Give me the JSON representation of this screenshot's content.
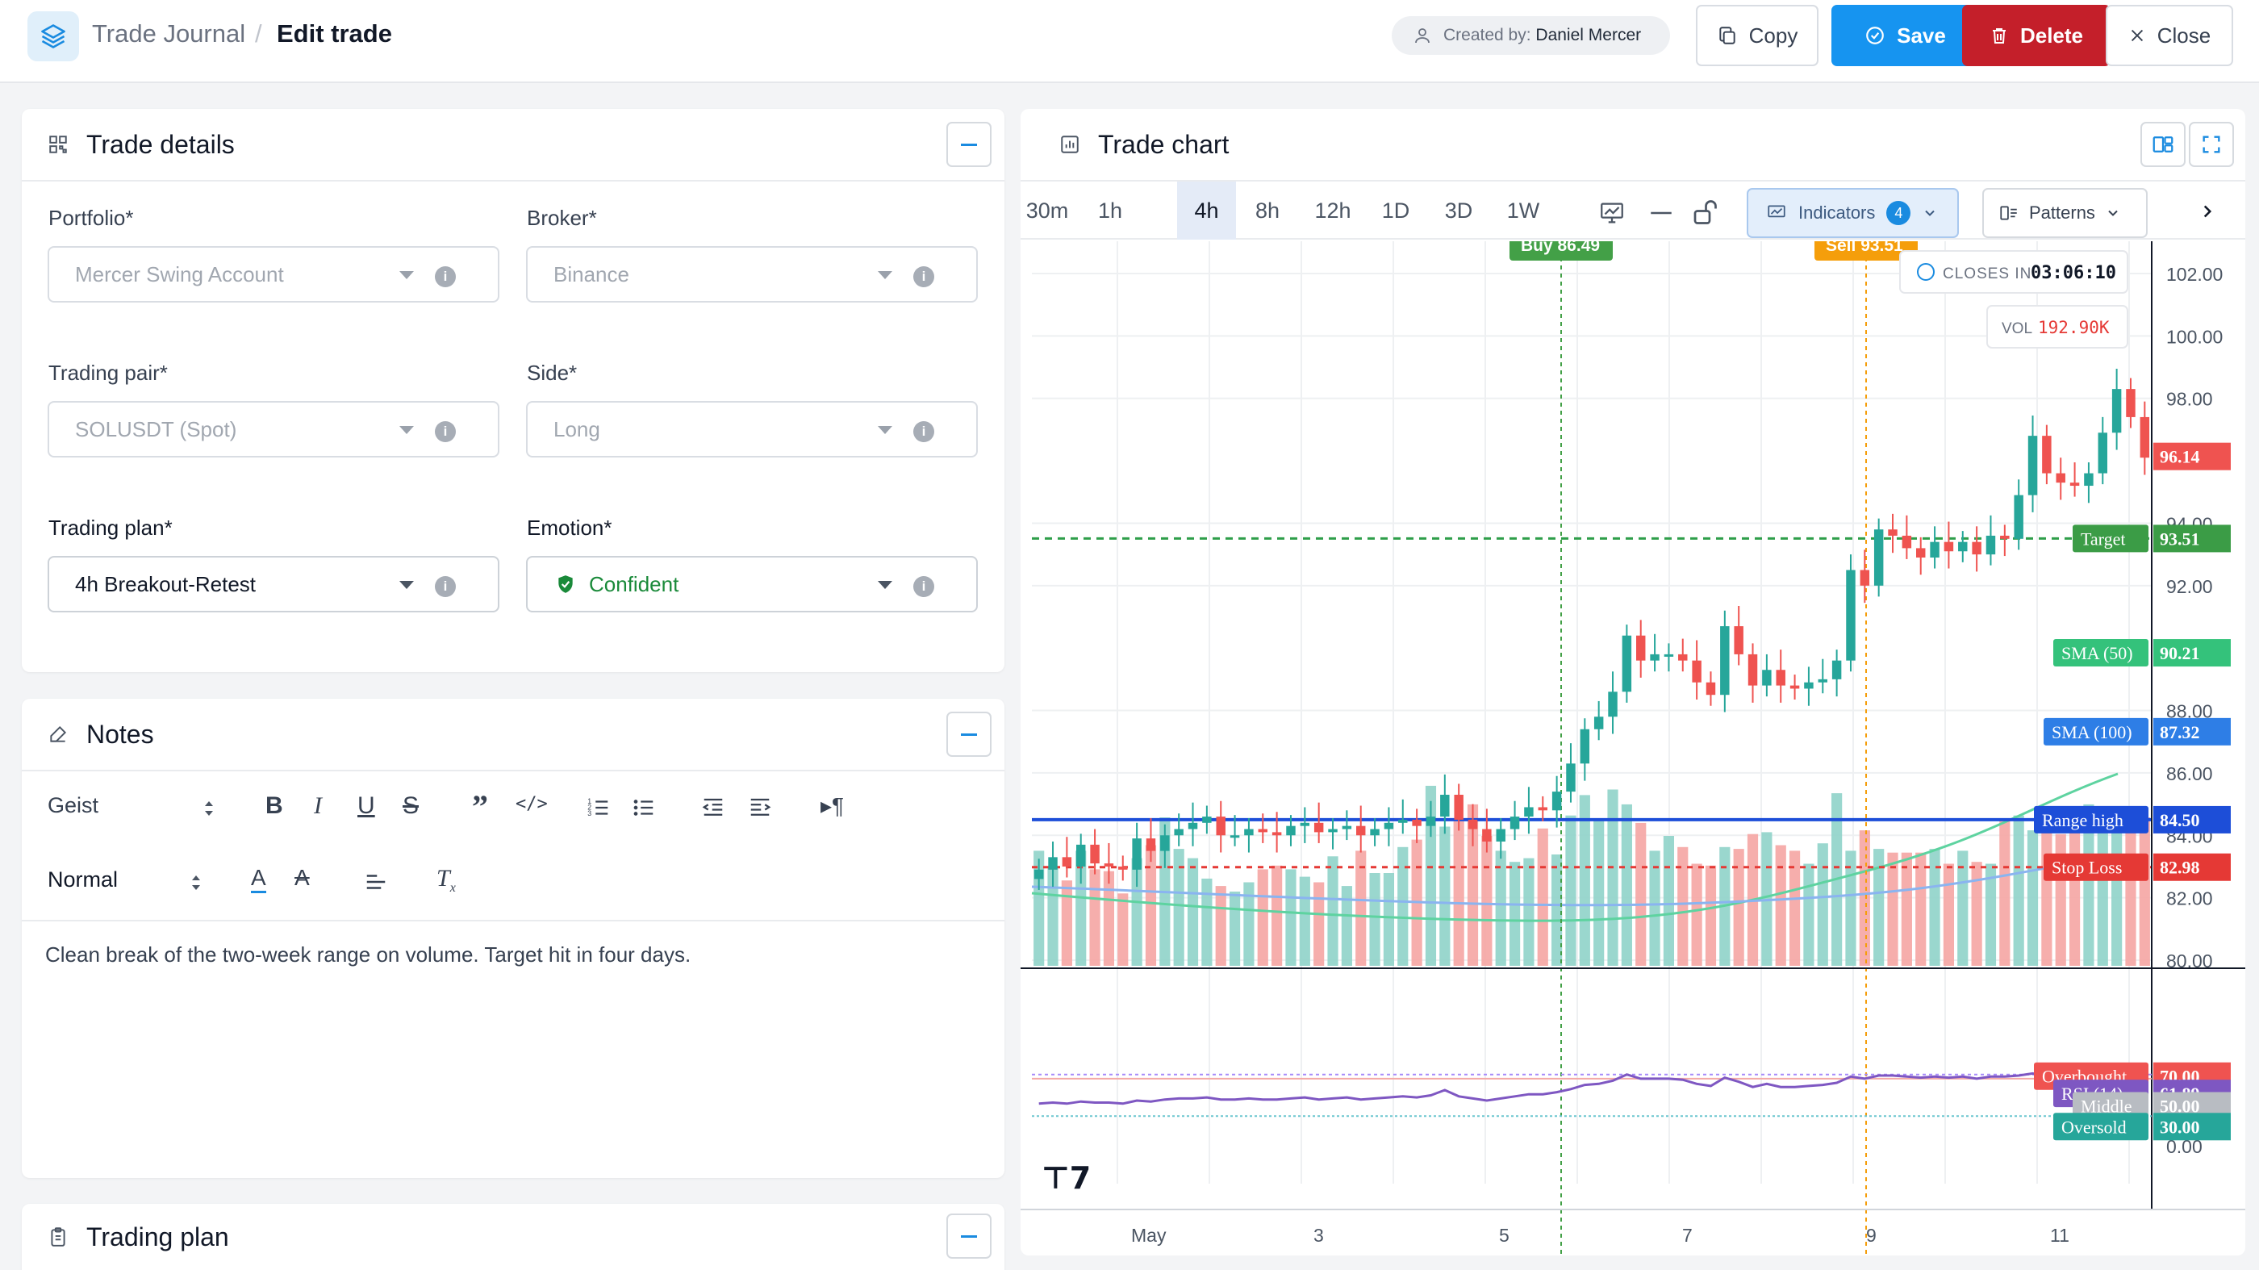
{
  "header": {
    "breadcrumb_parent": "Trade Journal",
    "breadcrumb_sep": "/",
    "breadcrumb_current": "Edit trade",
    "created_by_label": "Created by:",
    "created_by_name": "Daniel Mercer",
    "copy_label": "Copy",
    "save_label": "Save",
    "delete_label": "Delete",
    "close_label": "Close"
  },
  "trade_details": {
    "title": "Trade details",
    "fields": [
      {
        "label": "Portfolio*",
        "value": "Mercer Swing Account"
      },
      {
        "label": "Broker*",
        "value": "Binance"
      },
      {
        "label": "Trading pair*",
        "value": "SOLUSDT (Spot)"
      },
      {
        "label": "Side*",
        "value": "Long"
      },
      {
        "label": "Trading plan*",
        "value": "4h Breakout-Retest"
      },
      {
        "label": "Emotion*",
        "value": "Confident"
      }
    ]
  },
  "notes": {
    "title": "Notes",
    "font_select": "Geist",
    "style_select": "Normal",
    "body": "Clean break of the two-week range on volume. Target hit in four days."
  },
  "trading_plan": {
    "title": "Trading plan"
  },
  "chart": {
    "title": "Trade chart",
    "timeframes": [
      "30m",
      "1h",
      "4h",
      "8h",
      "12h",
      "1D",
      "3D",
      "1W"
    ],
    "selected_timeframe": "4h",
    "indicators_label": "Indicators",
    "indicators_count": "4",
    "patterns_label": "Patterns",
    "colors": {
      "up": "#26a69a",
      "down": "#ef5350",
      "buy": "#43a047",
      "sell": "#f59e0b",
      "sma50": "#22c55e",
      "sma100": "#3b82f6",
      "rsi": "#7e57c2"
    }
  },
  "chart_data": {
    "type": "candlestick",
    "markers": {
      "buy_label": "Buy 86.49",
      "sell_label": "Sell 93.51",
      "closes_in_label": "CLOSES IN",
      "closes_in_value": "03:06:10",
      "vol_label": "VOL",
      "vol_value": "192.90K"
    },
    "price_axis_ticks": [
      "102.00",
      "100.00",
      "98.00",
      "94.00",
      "92.00",
      "88.00",
      "86.00",
      "84.00",
      "82.00",
      "80.00"
    ],
    "price_ticks_values": [
      102,
      100,
      98,
      94,
      92,
      88,
      86,
      84,
      82,
      80
    ],
    "x_axis_labels": [
      "May",
      "3",
      "5",
      "7",
      "9",
      "11"
    ],
    "ylim": [
      79.9,
      103.0
    ],
    "levels": [
      {
        "name": "Target",
        "value": 93.51,
        "label": "93.51",
        "color": "#43a047"
      },
      {
        "name": "SMA (50)",
        "value": 90.21,
        "label": "90.21",
        "color": "#22c55e"
      },
      {
        "name": "SMA (100)",
        "value": 87.32,
        "label": "87.32",
        "color": "#3b82f6"
      },
      {
        "name": "Range high",
        "value": 84.5,
        "label": "84.50",
        "color": "#1d4ed8"
      },
      {
        "name": "Stop Loss",
        "value": 82.98,
        "label": "82.98",
        "color": "#e53935"
      },
      {
        "name": "last",
        "value": 96.14,
        "label": "96.14",
        "color": "#ef5350"
      }
    ],
    "closes": [
      82.9,
      83.3,
      83.0,
      83.7,
      83.1,
      83.0,
      82.9,
      83.9,
      83.5,
      84.0,
      84.2,
      84.4,
      84.6,
      84.0,
      84.0,
      84.2,
      84.1,
      84.0,
      84.3,
      84.4,
      84.1,
      84.2,
      84.3,
      84.0,
      84.2,
      84.4,
      84.5,
      84.3,
      84.6,
      85.3,
      84.5,
      84.2,
      83.8,
      84.2,
      84.6,
      84.9,
      84.8,
      85.4,
      86.3,
      87.4,
      87.8,
      88.6,
      90.4,
      89.6,
      89.8,
      89.8,
      89.6,
      88.9,
      88.5,
      90.7,
      89.8,
      88.8,
      89.3,
      88.8,
      88.7,
      88.9,
      89.0,
      89.6,
      92.5,
      92.0,
      93.8,
      93.6,
      93.2,
      92.9,
      93.4,
      93.1,
      93.4,
      93.0,
      93.6,
      93.5,
      94.9,
      96.8,
      95.6,
      95.3,
      95.2,
      95.6,
      96.9,
      98.3,
      97.4,
      96.1
    ],
    "rsi": {
      "name": "RSI (14)",
      "value": "61.89",
      "overbought": "70.00",
      "middle": "50.00",
      "oversold": "30.00",
      "axis_zero": "0.00",
      "overbought_label": "Overbought",
      "middle_label": "Middle",
      "oversold_label": "Oversold",
      "values": [
        42,
        43,
        42,
        44,
        43,
        43,
        42,
        45,
        44,
        46,
        47,
        47,
        48,
        46,
        46,
        47,
        46,
        46,
        47,
        48,
        46,
        47,
        48,
        46,
        47,
        48,
        49,
        48,
        50,
        55,
        49,
        47,
        45,
        47,
        49,
        51,
        51,
        53,
        56,
        60,
        61,
        64,
        70,
        66,
        66,
        66,
        65,
        61,
        59,
        67,
        63,
        58,
        61,
        58,
        58,
        59,
        60,
        62,
        68,
        66,
        69,
        69,
        68,
        67,
        68,
        67,
        68,
        66,
        68,
        68,
        69,
        71,
        68,
        67,
        67,
        68,
        70,
        72,
        69,
        62
      ]
    },
    "volumes": [
      0.62,
      0.53,
      0.46,
      0.62,
      0.52,
      0.51,
      0.39,
      0.58,
      0.65,
      0.8,
      0.63,
      0.58,
      0.47,
      0.43,
      0.4,
      0.45,
      0.52,
      0.54,
      0.52,
      0.48,
      0.45,
      0.59,
      0.43,
      0.62,
      0.5,
      0.5,
      0.64,
      0.68,
      0.97,
      0.75,
      0.78,
      0.87,
      0.7,
      0.62,
      0.56,
      0.58,
      0.74,
      0.6,
      0.81,
      0.92,
      0.78,
      0.95,
      0.87,
      0.77,
      0.62,
      0.7,
      0.64,
      0.55,
      0.54,
      0.64,
      0.63,
      0.71,
      0.72,
      0.65,
      0.62,
      0.55,
      0.66,
      0.93,
      0.62,
      0.73,
      0.63,
      0.61,
      0.61,
      0.61,
      0.63,
      0.55,
      0.62,
      0.56,
      0.55,
      0.78,
      0.81,
      0.73,
      0.77,
      0.71,
      0.86,
      0.87,
      0.83,
      0.83,
      0.75,
      0.8
    ]
  }
}
